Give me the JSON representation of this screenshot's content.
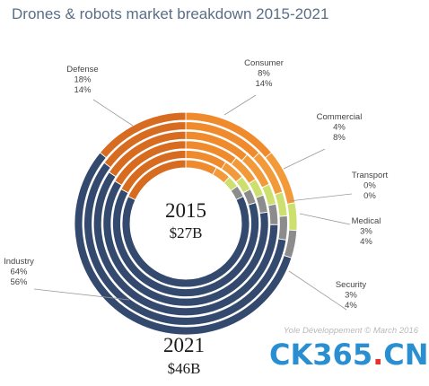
{
  "chart_data": {
    "type": "pie",
    "title": "Drones & robots market breakdown 2015-2021",
    "categories": [
      "Consumer",
      "Commercial",
      "Transport",
      "Medical",
      "Security",
      "Industry",
      "Defense"
    ],
    "series": [
      {
        "values": [
          8,
          4,
          0,
          3,
          3,
          64,
          18
        ]
      },
      {
        "values": [
          14,
          8,
          0,
          4,
          4,
          56,
          14
        ]
      }
    ],
    "labels": [
      {
        "name": "Consumer",
        "v2015": "8%",
        "v2021": "14%"
      },
      {
        "name": "Commercial",
        "v2015": "4%",
        "v2021": "8%"
      },
      {
        "name": "Transport",
        "v2015": "0%",
        "v2021": "0%"
      },
      {
        "name": "Medical",
        "v2015": "3%",
        "v2021": "4%"
      },
      {
        "name": "Security",
        "v2015": "3%",
        "v2021": "4%"
      },
      {
        "name": "Industry",
        "v2015": "64%",
        "v2021": "56%"
      },
      {
        "name": "Defense",
        "v2015": "18%",
        "v2021": "14%"
      }
    ],
    "colors": {
      "Consumer": "#ef8a2d",
      "Commercial": "#f29a3a",
      "Transport": "#a6c64a",
      "Medical": "#cddf6e",
      "Security": "#8c8c8c",
      "Industry": "#33496e",
      "Defense": "#d76b20"
    },
    "inner": {
      "year": "2015",
      "value": "$27B"
    },
    "outer": {
      "year": "2021",
      "value": "$46B"
    },
    "credit": "Yole Développement © March 2016"
  },
  "watermark": {
    "main": "CK365",
    "dot": ".",
    "cn": "CN"
  }
}
